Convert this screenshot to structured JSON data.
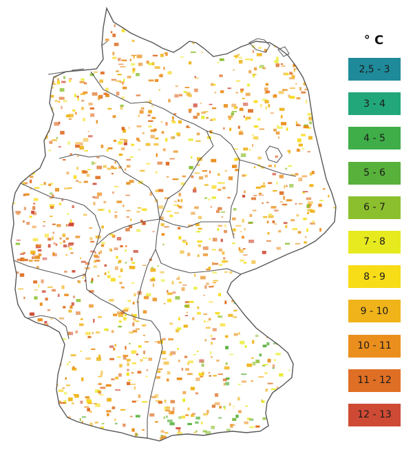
{
  "legend": {
    "unit": "° C",
    "items": [
      {
        "label": "2,5 - 3",
        "color": "#1f8a9a"
      },
      {
        "label": "3 - 4",
        "color": "#22a77a"
      },
      {
        "label": "4 - 5",
        "color": "#3fae49"
      },
      {
        "label": "5 - 6",
        "color": "#58b13b"
      },
      {
        "label": "6 - 7",
        "color": "#8bbf2e"
      },
      {
        "label": "7 - 8",
        "color": "#e6ea1f"
      },
      {
        "label": "8 - 9",
        "color": "#f7dc18"
      },
      {
        "label": "9 - 10",
        "color": "#f0b41a"
      },
      {
        "label": "10 - 11",
        "color": "#ea8f1e"
      },
      {
        "label": "11 - 12",
        "color": "#df6f25"
      },
      {
        "label": "12 - 13",
        "color": "#cf4a34"
      }
    ]
  },
  "map": {
    "land_fill": "#ffffff",
    "border_color": "#555555"
  }
}
